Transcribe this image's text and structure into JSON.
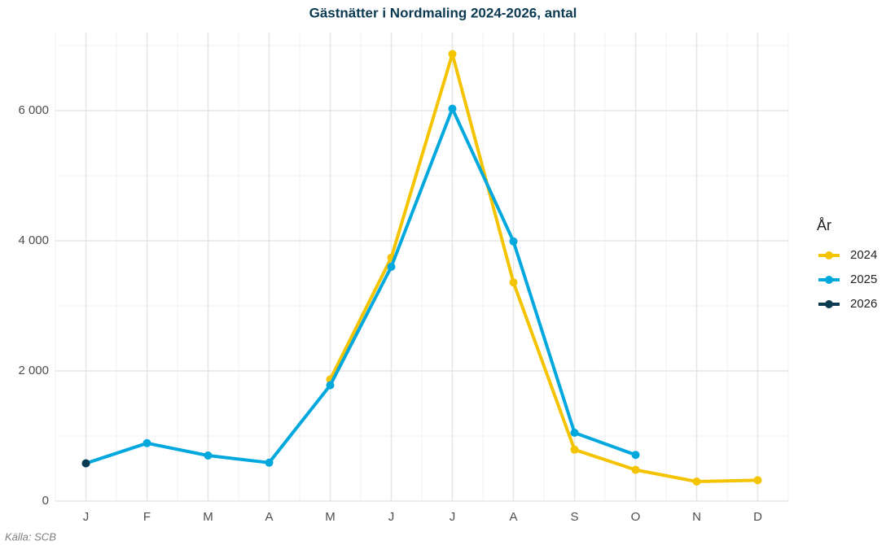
{
  "chart_data": {
    "type": "line",
    "title": "Gästnätter i Nordmaling 2024-2026, antal",
    "categories": [
      "J",
      "F",
      "M",
      "A",
      "M",
      "J",
      "J",
      "A",
      "S",
      "O",
      "N",
      "D"
    ],
    "series": [
      {
        "name": "2024",
        "color": "#f5c400",
        "values": [
          null,
          null,
          null,
          null,
          1870,
          3740,
          6870,
          3360,
          790,
          480,
          300,
          320
        ]
      },
      {
        "name": "2025",
        "color": "#00a8de",
        "values": [
          580,
          890,
          700,
          590,
          1780,
          3600,
          6030,
          3990,
          1050,
          710,
          null,
          null
        ]
      },
      {
        "name": "2026",
        "color": "#0b3a52",
        "values": [
          580,
          null,
          null,
          null,
          null,
          null,
          null,
          null,
          null,
          null,
          null,
          null
        ]
      }
    ],
    "ylim": [
      0,
      7200
    ],
    "yticks": [
      0,
      {
        "value": 2000,
        "label": "2 000"
      },
      {
        "value": 4000,
        "label": "4 000"
      },
      {
        "value": 6000,
        "label": "6 000"
      }
    ],
    "grid": true,
    "legend_title": "År",
    "legend": "right",
    "caption": "Källa: SCB"
  }
}
